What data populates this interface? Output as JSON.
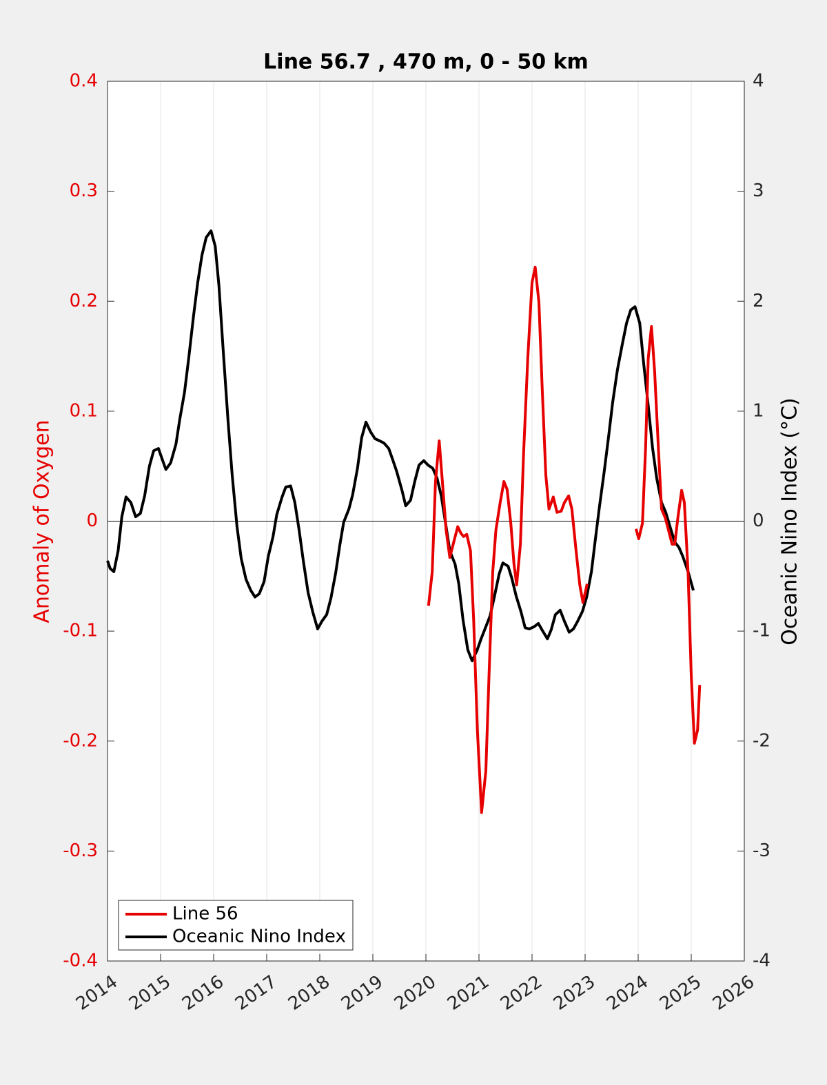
{
  "chart_data": {
    "type": "line",
    "title": "Line 56.7 , 470 m, 0 - 50 km",
    "ylabel": "Anomaly of Oxygen",
    "y2label": "Oceanic Nino Index (°C)",
    "xlim": [
      2014,
      2026
    ],
    "xticks": [
      2014,
      2015,
      2016,
      2017,
      2018,
      2019,
      2020,
      2021,
      2022,
      2023,
      2024,
      2025,
      2026
    ],
    "ylim": [
      -0.4,
      0.4
    ],
    "yticks": [
      -0.4,
      -0.3,
      -0.2,
      -0.1,
      0,
      0.1,
      0.2,
      0.3,
      0.4
    ],
    "y2lim": [
      -4,
      4
    ],
    "y2ticks": [
      -4,
      -3,
      -2,
      -1,
      0,
      1,
      2,
      3,
      4
    ],
    "hline": 0,
    "grid": true,
    "legend": "lower left",
    "ylabel_color": "#e60000",
    "series": [
      {
        "name": "Line 56",
        "color": "#e60000",
        "x": [
          2020.05,
          2020.12,
          2020.18,
          2020.25,
          2020.31,
          2020.38,
          2020.45,
          2020.53,
          2020.6,
          2020.66,
          2020.71,
          2020.77,
          2020.84,
          2020.9,
          2020.97,
          2021.05,
          2021.13,
          2021.19,
          2021.26,
          2021.32,
          2021.4,
          2021.47,
          2021.53,
          2021.6,
          2021.66,
          2021.71,
          2021.78,
          2021.84,
          2021.92,
          2022.0,
          2022.06,
          2022.13,
          2022.19,
          2022.26,
          2022.32,
          2022.4,
          2022.47,
          2022.55,
          2022.61,
          2022.69,
          2022.75,
          2022.83,
          2022.9,
          2022.96,
          2023.04,
          null,
          2023.96,
          2024.01,
          2024.08,
          2024.14,
          2024.19,
          2024.25,
          2024.31,
          2024.38,
          2024.44,
          2024.51,
          2024.57,
          2024.64,
          2024.69,
          2024.75,
          2024.82,
          2024.87,
          2024.94,
          2025.0,
          2025.06,
          2025.12,
          2025.16
        ],
        "values": [
          -0.077,
          -0.046,
          0.036,
          0.073,
          0.036,
          -0.008,
          -0.033,
          -0.018,
          -0.005,
          -0.011,
          -0.014,
          -0.012,
          -0.027,
          -0.09,
          -0.19,
          -0.265,
          -0.227,
          -0.14,
          -0.046,
          -0.008,
          0.017,
          0.036,
          0.029,
          -0.002,
          -0.039,
          -0.058,
          -0.021,
          0.061,
          0.148,
          0.217,
          0.231,
          0.199,
          0.123,
          0.042,
          0.011,
          0.022,
          0.008,
          0.009,
          0.017,
          0.023,
          0.011,
          -0.027,
          -0.058,
          -0.074,
          -0.057,
          null,
          -0.007,
          -0.016,
          -0.002,
          0.067,
          0.148,
          0.177,
          0.136,
          0.067,
          0.011,
          0.003,
          -0.008,
          -0.021,
          -0.021,
          0.004,
          0.028,
          0.017,
          -0.046,
          -0.14,
          -0.202,
          -0.19,
          -0.149
        ]
      },
      {
        "name": "Oceanic Nino Index",
        "color": "#000000",
        "axis": "y2",
        "x": [
          2014.0,
          2014.05,
          2014.12,
          2014.2,
          2014.27,
          2014.35,
          2014.44,
          2014.53,
          2014.62,
          2014.7,
          2014.79,
          2014.87,
          2014.96,
          2015.04,
          2015.1,
          2015.19,
          2015.29,
          2015.36,
          2015.45,
          2015.53,
          2015.62,
          2015.7,
          2015.78,
          2015.86,
          2015.95,
          2016.03,
          2016.1,
          2016.18,
          2016.27,
          2016.35,
          2016.44,
          2016.52,
          2016.61,
          2016.7,
          2016.78,
          2016.86,
          2016.95,
          2017.03,
          2017.12,
          2017.19,
          2017.29,
          2017.36,
          2017.45,
          2017.53,
          2017.61,
          2017.69,
          2017.78,
          2017.87,
          2017.96,
          2018.04,
          2018.13,
          2018.21,
          2018.3,
          2018.38,
          2018.45,
          2018.55,
          2018.62,
          2018.71,
          2018.79,
          2018.87,
          2018.96,
          2019.04,
          2019.13,
          2019.21,
          2019.3,
          2019.38,
          2019.45,
          2019.55,
          2019.62,
          2019.71,
          2019.79,
          2019.87,
          2019.96,
          2020.04,
          2020.13,
          2020.21,
          2020.29,
          2020.38,
          2020.45,
          2020.55,
          2020.62,
          2020.7,
          2020.79,
          2020.87,
          2020.96,
          2021.04,
          2021.13,
          2021.21,
          2021.29,
          2021.38,
          2021.45,
          2021.55,
          2021.62,
          2021.7,
          2021.79,
          2021.87,
          2021.95,
          2022.04,
          2022.12,
          2022.19,
          2022.29,
          2022.36,
          2022.44,
          2022.53,
          2022.61,
          2022.7,
          2022.78,
          2022.86,
          2022.95,
          2023.03,
          2023.12,
          2023.19,
          2023.27,
          2023.36,
          2023.44,
          2023.52,
          2023.61,
          2023.69,
          2023.78,
          2023.86,
          2023.94,
          2024.03,
          2024.1,
          2024.19,
          2024.27,
          2024.35,
          2024.44,
          2024.52,
          2024.6,
          2024.69,
          2024.77,
          2024.84,
          2024.94,
          2025.04
        ],
        "values": [
          -0.36,
          -0.43,
          -0.46,
          -0.27,
          0.04,
          0.22,
          0.17,
          0.04,
          0.07,
          0.23,
          0.5,
          0.64,
          0.66,
          0.55,
          0.47,
          0.53,
          0.7,
          0.92,
          1.17,
          1.48,
          1.86,
          2.17,
          2.42,
          2.58,
          2.64,
          2.5,
          2.14,
          1.55,
          0.92,
          0.42,
          -0.05,
          -0.34,
          -0.53,
          -0.63,
          -0.69,
          -0.66,
          -0.55,
          -0.32,
          -0.14,
          0.06,
          0.22,
          0.31,
          0.32,
          0.17,
          -0.08,
          -0.36,
          -0.65,
          -0.83,
          -0.98,
          -0.91,
          -0.85,
          -0.7,
          -0.47,
          -0.21,
          -0.01,
          0.11,
          0.24,
          0.48,
          0.76,
          0.9,
          0.81,
          0.75,
          0.73,
          0.71,
          0.66,
          0.55,
          0.45,
          0.28,
          0.14,
          0.19,
          0.36,
          0.51,
          0.55,
          0.51,
          0.48,
          0.39,
          0.23,
          -0.05,
          -0.27,
          -0.39,
          -0.57,
          -0.9,
          -1.17,
          -1.27,
          -1.18,
          -1.07,
          -0.96,
          -0.86,
          -0.69,
          -0.48,
          -0.38,
          -0.41,
          -0.52,
          -0.68,
          -0.82,
          -0.97,
          -0.98,
          -0.96,
          -0.93,
          -0.99,
          -1.07,
          -0.99,
          -0.85,
          -0.81,
          -0.91,
          -1.01,
          -0.98,
          -0.91,
          -0.82,
          -0.69,
          -0.46,
          -0.18,
          0.13,
          0.45,
          0.76,
          1.08,
          1.38,
          1.58,
          1.8,
          1.92,
          1.95,
          1.8,
          1.45,
          1.05,
          0.67,
          0.39,
          0.17,
          0.08,
          -0.05,
          -0.19,
          -0.24,
          -0.32,
          -0.46,
          -0.63
        ]
      }
    ]
  }
}
